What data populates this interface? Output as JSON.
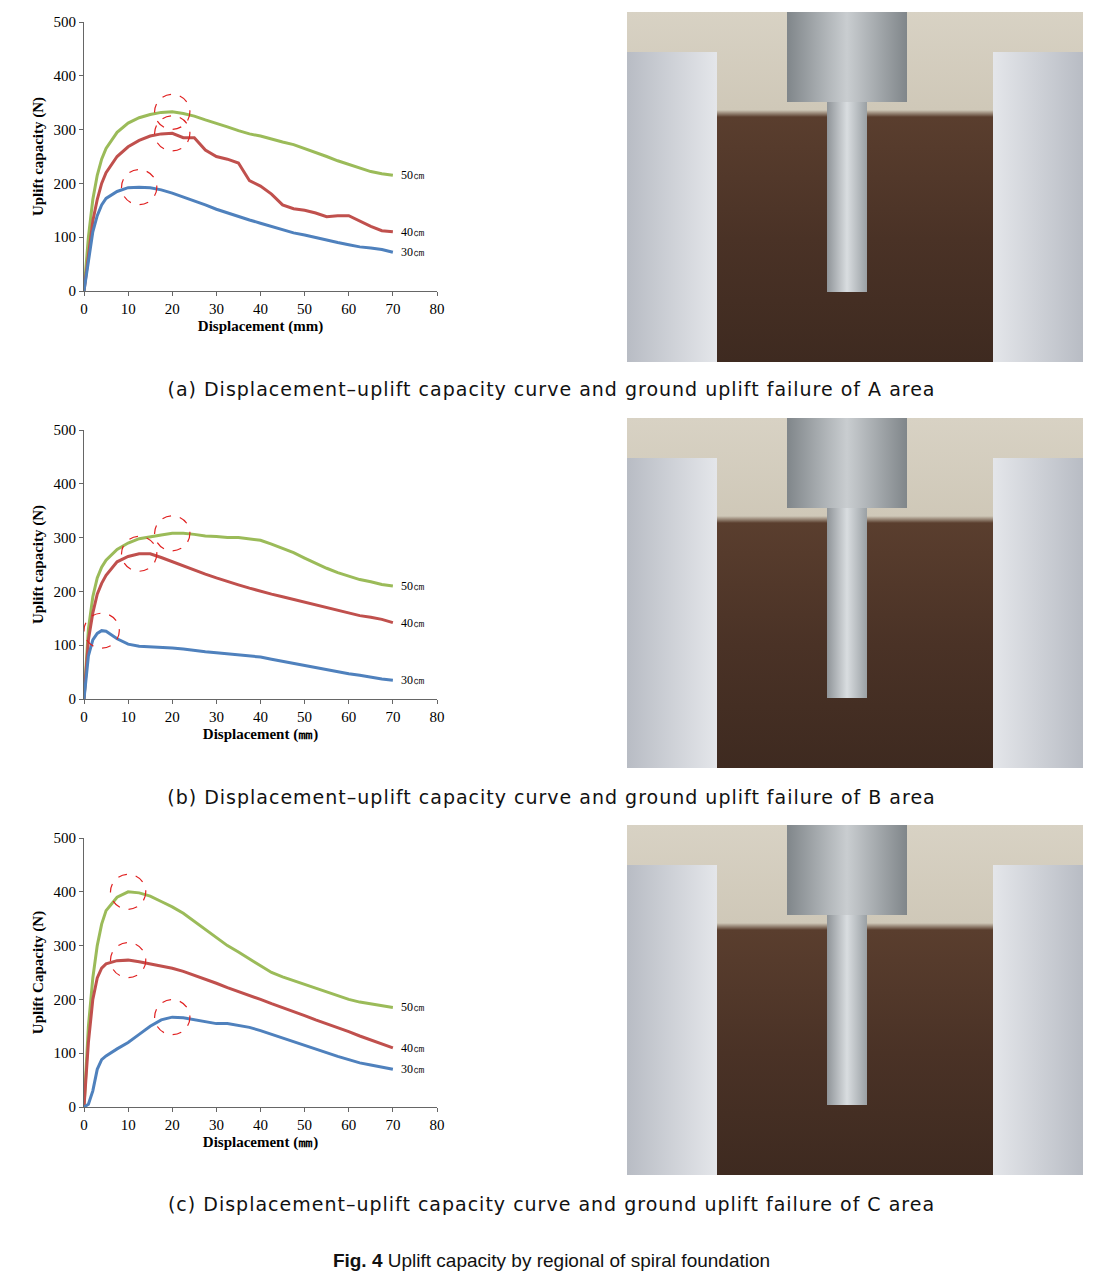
{
  "chart_data": [
    {
      "type": "line",
      "x_label": "Displacement (mm)",
      "y_label": "Uplift capacity (N)",
      "x": [
        0,
        1,
        2,
        3,
        4,
        5,
        7.5,
        10,
        12.5,
        15,
        17.5,
        20,
        22.5,
        25,
        27.5,
        30,
        32.5,
        35,
        37.5,
        40,
        42.5,
        45,
        47.5,
        50,
        52.5,
        55,
        57.5,
        60,
        62.5,
        65,
        67.5,
        70
      ],
      "series": [
        {
          "name": "50㎝",
          "color": "#9bbb59",
          "values": [
            0,
            100,
            170,
            215,
            245,
            265,
            295,
            312,
            322,
            328,
            332,
            333,
            330,
            325,
            318,
            312,
            305,
            298,
            292,
            288,
            282,
            277,
            272,
            265,
            258,
            250,
            242,
            235,
            228,
            222,
            218,
            215
          ]
        },
        {
          "name": "40㎝",
          "color": "#c0504d",
          "values": [
            0,
            70,
            130,
            170,
            200,
            220,
            250,
            268,
            280,
            288,
            292,
            293,
            285,
            285,
            262,
            250,
            245,
            238,
            205,
            195,
            180,
            160,
            153,
            150,
            145,
            138,
            140,
            140,
            130,
            120,
            112,
            110
          ]
        },
        {
          "name": "30㎝",
          "color": "#4f81bd",
          "values": [
            0,
            60,
            110,
            140,
            160,
            172,
            185,
            192,
            193,
            192,
            188,
            182,
            175,
            168,
            160,
            152,
            145,
            138,
            132,
            126,
            120,
            114,
            108,
            104,
            99,
            95,
            90,
            86,
            82,
            80,
            77,
            72
          ]
        }
      ],
      "xlim": [
        0,
        80
      ],
      "xticks": [
        0,
        10,
        20,
        30,
        40,
        50,
        60,
        70,
        80
      ],
      "ylim": [
        0,
        500
      ],
      "yticks": [
        0,
        100,
        200,
        300,
        400,
        500
      ],
      "grid": false,
      "caption": "(a) Displacement–uplift capacity curve and ground uplift failure of A area"
    },
    {
      "type": "line",
      "x_label": "Displacement (㎜)",
      "y_label": "Uplift capacity (N)",
      "x": [
        0,
        1,
        2,
        3,
        4,
        5,
        7.5,
        10,
        12.5,
        15,
        17.5,
        20,
        22.5,
        25,
        27.5,
        30,
        32.5,
        35,
        37.5,
        40,
        42.5,
        45,
        47.5,
        50,
        52.5,
        55,
        57.5,
        60,
        62.5,
        65,
        67.5,
        70
      ],
      "series": [
        {
          "name": "50㎝",
          "color": "#9bbb59",
          "values": [
            0,
            130,
            190,
            225,
            245,
            258,
            278,
            290,
            298,
            302,
            305,
            308,
            308,
            306,
            303,
            302,
            300,
            300,
            298,
            295,
            288,
            280,
            272,
            262,
            252,
            243,
            235,
            228,
            222,
            218,
            213,
            210
          ]
        },
        {
          "name": "40㎝",
          "color": "#c0504d",
          "values": [
            0,
            110,
            160,
            195,
            215,
            230,
            255,
            265,
            270,
            270,
            263,
            255,
            248,
            240,
            232,
            225,
            218,
            212,
            206,
            200,
            195,
            190,
            185,
            180,
            175,
            170,
            165,
            160,
            155,
            152,
            148,
            142
          ]
        },
        {
          "name": "30㎝",
          "color": "#4f81bd",
          "values": [
            0,
            80,
            110,
            122,
            127,
            126,
            112,
            102,
            98,
            97,
            97,
            95,
            93,
            90,
            88,
            86,
            84,
            82,
            80,
            78,
            74,
            70,
            66,
            62,
            58,
            54,
            50,
            47,
            44,
            40,
            37,
            35
          ]
        }
      ],
      "xlim": [
        0,
        80
      ],
      "xticks": [
        0,
        10,
        20,
        30,
        40,
        50,
        60,
        70,
        80
      ],
      "ylim": [
        0,
        500
      ],
      "yticks": [
        0,
        100,
        200,
        300,
        400,
        500
      ],
      "grid": false,
      "caption": "(b) Displacement–uplift capacity curve and ground uplift failure of B area"
    },
    {
      "type": "line",
      "x_label": "Displacement (㎜)",
      "y_label": "Uplift Capacity (N)",
      "x": [
        0,
        1,
        2,
        3,
        4,
        5,
        7.5,
        10,
        12.5,
        15,
        17.5,
        20,
        22.5,
        25,
        27.5,
        30,
        32.5,
        35,
        37.5,
        40,
        42.5,
        45,
        47.5,
        50,
        52.5,
        55,
        57.5,
        60,
        62.5,
        65,
        67.5,
        70
      ],
      "series": [
        {
          "name": "50㎝",
          "color": "#9bbb59",
          "values": [
            0,
            150,
            240,
            300,
            340,
            365,
            390,
            400,
            398,
            392,
            382,
            372,
            360,
            345,
            330,
            315,
            300,
            288,
            275,
            262,
            250,
            242,
            235,
            228,
            220,
            213,
            206,
            200,
            195,
            192,
            188,
            185
          ]
        },
        {
          "name": "40㎝",
          "color": "#c0504d",
          "values": [
            0,
            120,
            200,
            240,
            258,
            266,
            272,
            273,
            270,
            266,
            262,
            258,
            252,
            245,
            238,
            230,
            222,
            215,
            208,
            200,
            192,
            185,
            178,
            170,
            162,
            155,
            148,
            140,
            132,
            125,
            118,
            110
          ]
        },
        {
          "name": "30㎝",
          "color": "#4f81bd",
          "values": [
            0,
            5,
            30,
            70,
            88,
            95,
            108,
            120,
            135,
            150,
            162,
            167,
            166,
            162,
            158,
            155,
            155,
            152,
            148,
            142,
            135,
            128,
            122,
            115,
            108,
            100,
            94,
            88,
            82,
            78,
            74,
            70
          ]
        }
      ],
      "xlim": [
        0,
        80
      ],
      "xticks": [
        0,
        10,
        20,
        30,
        40,
        50,
        60,
        70,
        80
      ],
      "ylim": [
        0,
        500
      ],
      "yticks": [
        0,
        100,
        200,
        300,
        400,
        500
      ],
      "grid": false,
      "caption": "(c) Displacement–uplift capacity curve and ground uplift failure of C area"
    }
  ],
  "figure_caption": {
    "label": "Fig. 4",
    "text": "Uplift capacity by regional of spiral foundation"
  }
}
